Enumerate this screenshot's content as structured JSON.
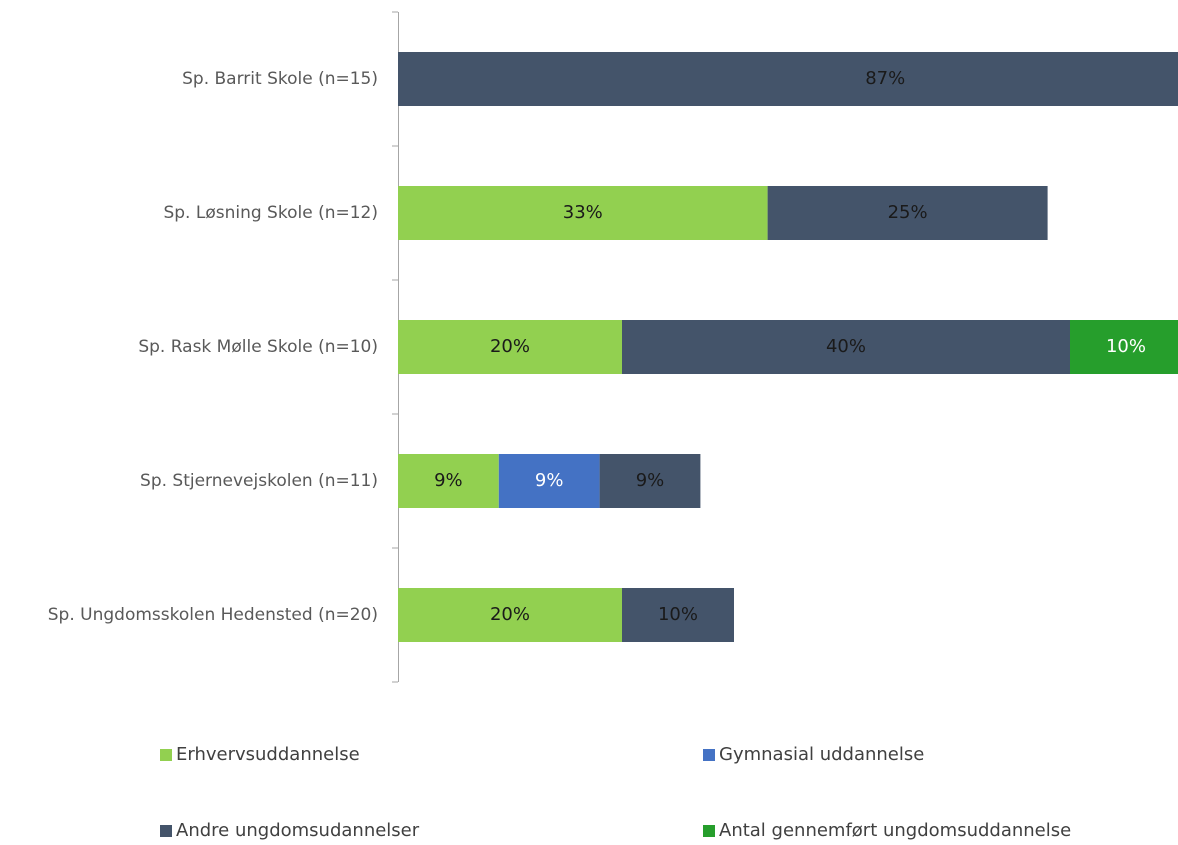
{
  "chart_data": {
    "type": "stacked-bar-horizontal",
    "categories": [
      "Sp. Barrit Skole (n=15)",
      "Sp. Løsning Skole (n=12)",
      "Sp. Rask Mølle Skole (n=10)",
      "Sp. Stjernevejskolen (n=11)",
      "Sp. Ungdomsskolen Hedensted (n=20)"
    ],
    "series": [
      {
        "name": "Erhvervsuddannelse",
        "color": "#92d050",
        "values": [
          null,
          33,
          20,
          9,
          20
        ],
        "value_labels": [
          null,
          "33%",
          "20%",
          "9%",
          "20%"
        ]
      },
      {
        "name": "Gymnasial uddannelse",
        "color": "#4472c4",
        "values": [
          null,
          null,
          null,
          9,
          null
        ],
        "value_labels": [
          null,
          null,
          null,
          "9%",
          null
        ]
      },
      {
        "name": "Andre ungdomsudannelser",
        "color": "#44546a",
        "values": [
          87,
          25,
          40,
          9,
          10
        ],
        "value_labels": [
          "87%",
          "25%",
          "40%",
          "9%",
          "10%"
        ]
      },
      {
        "name": "Antal gennemført ungdomsuddannelse",
        "color": "#269e2c",
        "values": [
          null,
          null,
          10,
          null,
          null
        ],
        "value_labels": [
          null,
          null,
          "10%",
          null,
          null
        ]
      }
    ],
    "legend": "bottom"
  }
}
